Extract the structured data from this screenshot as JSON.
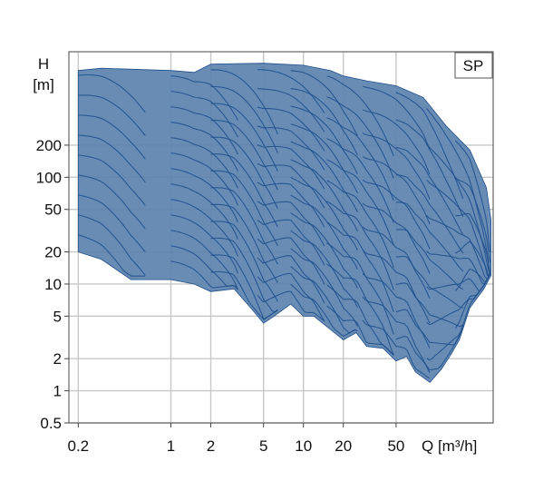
{
  "chart_data": {
    "type": "area",
    "title": "",
    "legend": {
      "label": "SP",
      "placement": "top-right"
    },
    "yaxis": {
      "title": "H",
      "unit": "[m]",
      "scale": "log",
      "ticks": [
        0.5,
        1,
        2,
        5,
        10,
        20,
        50,
        100,
        200
      ],
      "tick_labels": [
        "0.5",
        "1",
        "2",
        "5",
        "10",
        "20",
        "50",
        "100",
        "200"
      ],
      "range": [
        0.5,
        1500
      ]
    },
    "xaxis": {
      "title": "Q [m³/h]",
      "scale": "log",
      "ticks": [
        0.2,
        1,
        2,
        5,
        10,
        20,
        50
      ],
      "tick_labels": [
        "0.2",
        "1",
        "2",
        "5",
        "10",
        "20",
        "50"
      ],
      "range": [
        0.17,
        270
      ]
    },
    "grid": true,
    "colors": {
      "fill": "#5b82ae",
      "line": "#1e4f8c",
      "grid": "#c8c8c8",
      "frame": "#666666"
    },
    "envelope": {
      "top": [
        [
          0.2,
          1000
        ],
        [
          0.3,
          1050
        ],
        [
          1,
          1000
        ],
        [
          1.5,
          960
        ],
        [
          2,
          1150
        ],
        [
          5,
          1170
        ],
        [
          10,
          1120
        ],
        [
          16,
          1000
        ],
        [
          20,
          890
        ],
        [
          30,
          800
        ],
        [
          50,
          720
        ],
        [
          80,
          560
        ],
        [
          120,
          300
        ],
        [
          180,
          180
        ],
        [
          240,
          80
        ],
        [
          260,
          40
        ]
      ],
      "bottom": [
        [
          0.2,
          20
        ],
        [
          0.3,
          17
        ],
        [
          0.5,
          11
        ],
        [
          1,
          11
        ],
        [
          1.5,
          10
        ],
        [
          2,
          8.5
        ],
        [
          3,
          9
        ],
        [
          4,
          6
        ],
        [
          5,
          4.3
        ],
        [
          6,
          5
        ],
        [
          8,
          6.5
        ],
        [
          10,
          5
        ],
        [
          12,
          5
        ],
        [
          15,
          4
        ],
        [
          20,
          3
        ],
        [
          25,
          3.5
        ],
        [
          30,
          2.6
        ],
        [
          40,
          2.5
        ],
        [
          50,
          1.9
        ],
        [
          60,
          2.1
        ],
        [
          70,
          1.5
        ],
        [
          90,
          1.2
        ],
        [
          110,
          1.6
        ],
        [
          130,
          2.2
        ],
        [
          150,
          3
        ],
        [
          180,
          6
        ],
        [
          230,
          9
        ],
        [
          260,
          12
        ]
      ]
    }
  }
}
